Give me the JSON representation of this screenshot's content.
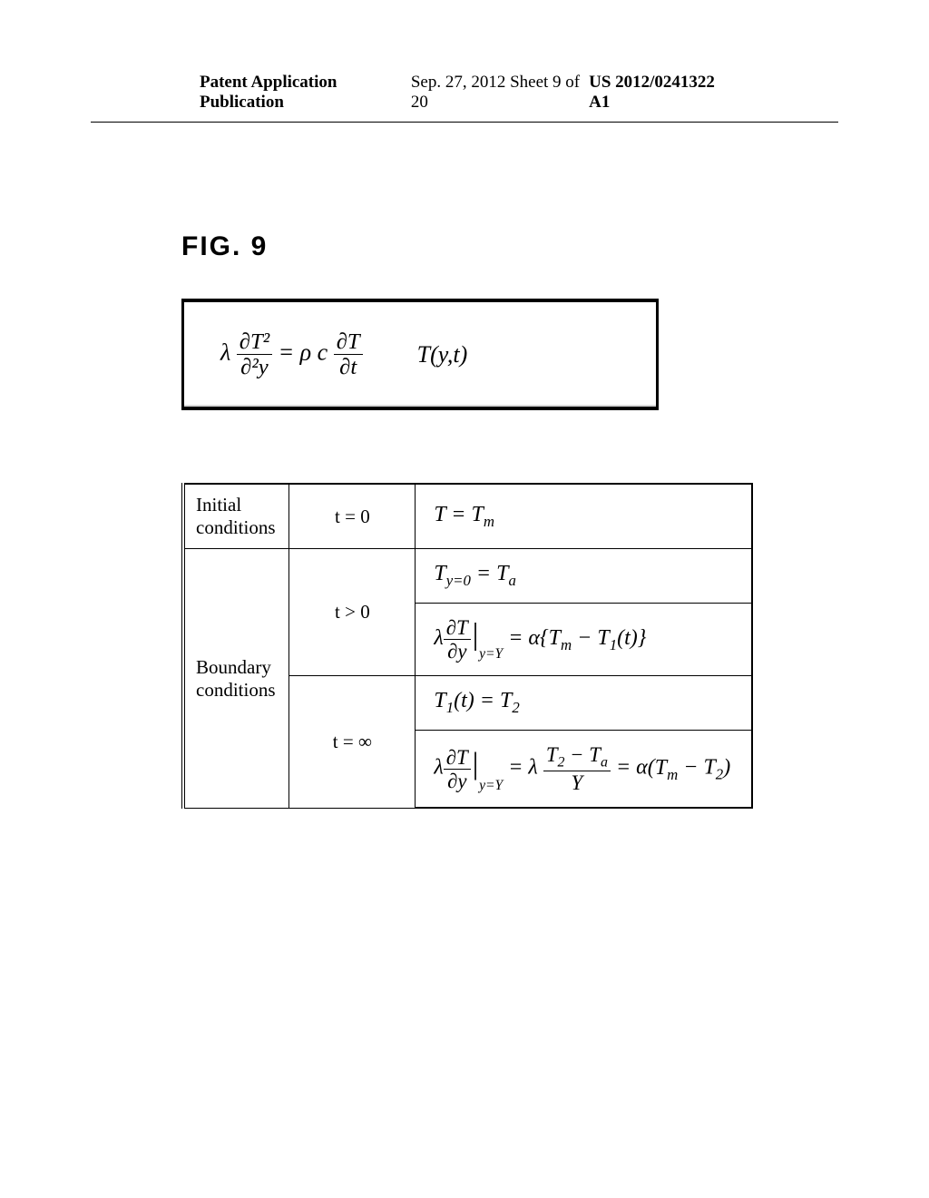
{
  "header": {
    "left": "Patent Application Publication",
    "center": "Sep. 27, 2012  Sheet 9 of 20",
    "right": "US 2012/0241322 A1"
  },
  "figure": {
    "label": "FIG. 9"
  },
  "main_equation": {
    "lhs_coeff": "λ",
    "lhs_num": "∂T²",
    "lhs_den": "∂²y",
    "eq": "=",
    "rhs_coeff": "ρ c",
    "rhs_num": "∂T",
    "rhs_den": "∂t",
    "func": "T(y,t)"
  },
  "table": {
    "rows": [
      {
        "type": "initial",
        "label": "Initial\nconditions",
        "time": "t = 0",
        "eq": "T = Tₘ"
      },
      {
        "type": "boundary",
        "label": "Boundary\nconditions",
        "time1": "t > 0",
        "eq1a": "T_y=0 = T_a",
        "eq1b_lhs_num": "∂T",
        "eq1b_lhs_den": "∂y",
        "eq1b_sub": "y=Y",
        "eq1b_rhs": "= α{Tₘ − T₁(t)}",
        "time2": "t = ∞",
        "eq2a": "T₁(t) = T₂",
        "eq2b_lhs_num": "∂T",
        "eq2b_lhs_den": "∂y",
        "eq2b_sub": "y=Y",
        "eq2b_mid_num": "T₂ − T_a",
        "eq2b_mid_den": "Y",
        "eq2b_rhs": "= α(Tₘ − T₂)"
      }
    ]
  },
  "style": {
    "page_bg": "#ffffff",
    "text_color": "#000000",
    "border_color": "#000000",
    "header_fontsize": 19,
    "figlabel_fontsize": 30,
    "eq_fontsize": 26,
    "table_fontsize": 22
  }
}
